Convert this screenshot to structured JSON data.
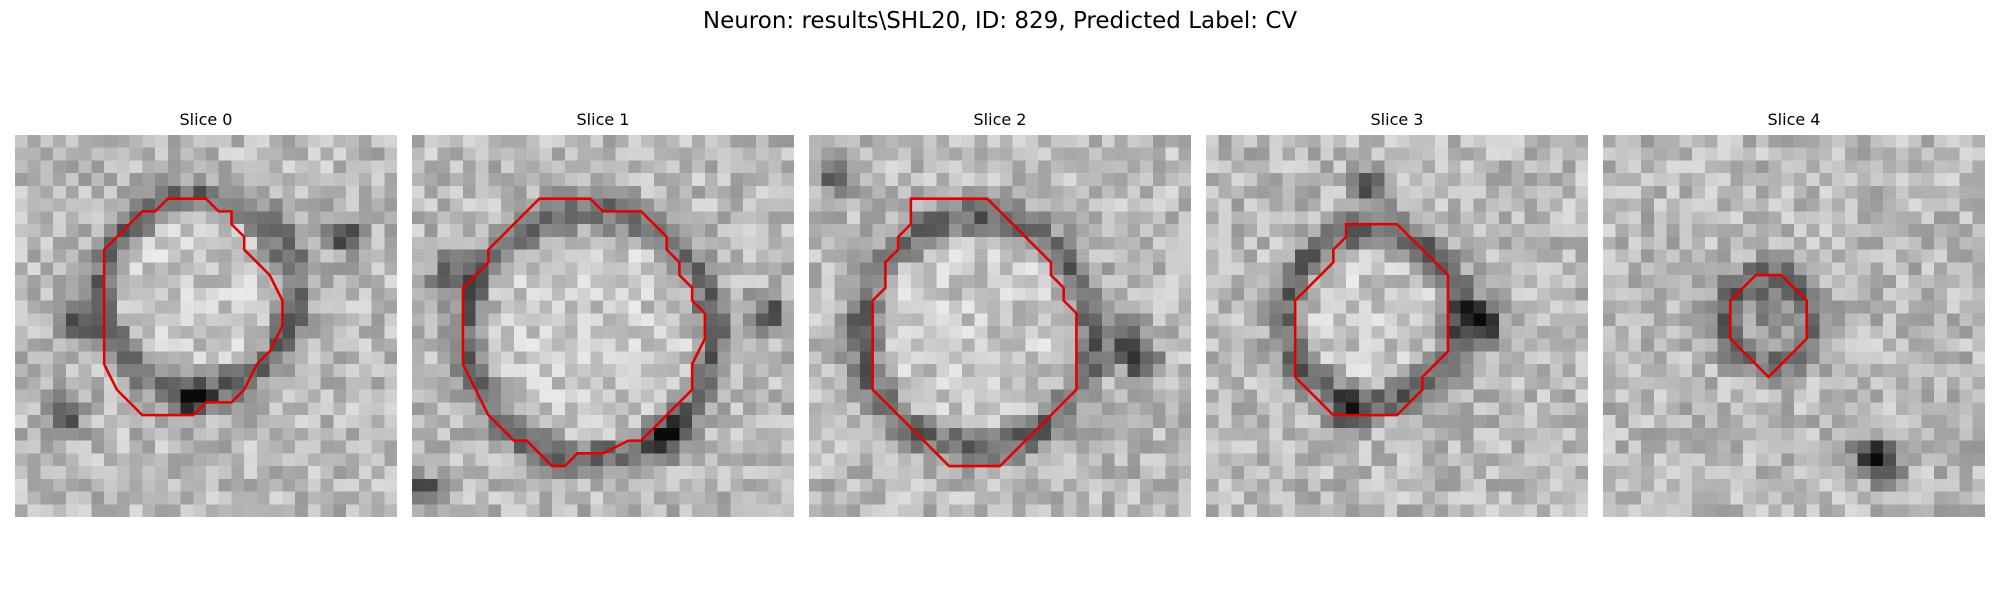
{
  "figure": {
    "title": "Neuron: results\\SHL20, ID: 829, Predicted Label: CV",
    "outline_color": "#e00000"
  },
  "panels": [
    {
      "title": "Slice 0",
      "outline": [
        [
          13,
          5
        ],
        [
          15,
          5
        ],
        [
          16,
          6
        ],
        [
          17,
          6
        ],
        [
          17,
          7
        ],
        [
          18,
          8
        ],
        [
          18,
          9
        ],
        [
          19,
          10
        ],
        [
          20,
          11
        ],
        [
          21,
          13
        ],
        [
          21,
          15
        ],
        [
          20,
          17
        ],
        [
          19,
          18
        ],
        [
          18,
          20
        ],
        [
          17,
          21
        ],
        [
          15,
          21
        ],
        [
          14,
          22
        ],
        [
          10,
          22
        ],
        [
          9,
          21
        ],
        [
          8,
          20
        ],
        [
          7,
          18
        ],
        [
          7,
          9
        ],
        [
          8,
          8
        ],
        [
          9,
          7
        ],
        [
          10,
          6
        ],
        [
          11,
          6
        ],
        [
          12,
          5
        ]
      ],
      "dark_spots": [
        [
          14,
          21
        ],
        [
          5,
          15
        ],
        [
          26,
          8
        ],
        [
          4,
          22
        ]
      ]
    },
    {
      "title": "Slice 1",
      "outline": [
        [
          10,
          5
        ],
        [
          14,
          5
        ],
        [
          15,
          6
        ],
        [
          18,
          6
        ],
        [
          19,
          7
        ],
        [
          20,
          8
        ],
        [
          20,
          9
        ],
        [
          21,
          10
        ],
        [
          21,
          11
        ],
        [
          22,
          12
        ],
        [
          22,
          13
        ],
        [
          23,
          14
        ],
        [
          23,
          16
        ],
        [
          22,
          18
        ],
        [
          22,
          20
        ],
        [
          21,
          21
        ],
        [
          20,
          22
        ],
        [
          19,
          23
        ],
        [
          18,
          24
        ],
        [
          17,
          24
        ],
        [
          15,
          25
        ],
        [
          13,
          25
        ],
        [
          12,
          26
        ],
        [
          11,
          26
        ],
        [
          10,
          25
        ],
        [
          9,
          24
        ],
        [
          8,
          24
        ],
        [
          7,
          23
        ],
        [
          6,
          22
        ],
        [
          5,
          20
        ],
        [
          4,
          18
        ],
        [
          4,
          12
        ],
        [
          5,
          11
        ],
        [
          6,
          10
        ],
        [
          6,
          9
        ],
        [
          7,
          8
        ],
        [
          8,
          7
        ],
        [
          9,
          6
        ]
      ],
      "dark_spots": [
        [
          1,
          28
        ],
        [
          28,
          14
        ],
        [
          20,
          24
        ],
        [
          3,
          11
        ]
      ]
    },
    {
      "title": "Slice 2",
      "outline": [
        [
          8,
          5
        ],
        [
          14,
          5
        ],
        [
          15,
          6
        ],
        [
          16,
          7
        ],
        [
          17,
          8
        ],
        [
          18,
          9
        ],
        [
          19,
          10
        ],
        [
          19,
          11
        ],
        [
          20,
          12
        ],
        [
          20,
          13
        ],
        [
          21,
          14
        ],
        [
          21,
          20
        ],
        [
          20,
          21
        ],
        [
          19,
          22
        ],
        [
          18,
          23
        ],
        [
          17,
          24
        ],
        [
          16,
          25
        ],
        [
          15,
          26
        ],
        [
          11,
          26
        ],
        [
          10,
          25
        ],
        [
          9,
          24
        ],
        [
          8,
          23
        ],
        [
          7,
          22
        ],
        [
          6,
          21
        ],
        [
          5,
          20
        ],
        [
          5,
          13
        ],
        [
          6,
          12
        ],
        [
          6,
          10
        ],
        [
          7,
          9
        ],
        [
          7,
          8
        ],
        [
          8,
          7
        ]
      ],
      "dark_spots": [
        [
          25,
          16
        ],
        [
          26,
          18
        ],
        [
          2,
          3
        ]
      ]
    },
    {
      "title": "Slice 3",
      "outline": [
        [
          11,
          7
        ],
        [
          15,
          7
        ],
        [
          16,
          8
        ],
        [
          17,
          9
        ],
        [
          18,
          10
        ],
        [
          19,
          11
        ],
        [
          19,
          17
        ],
        [
          18,
          18
        ],
        [
          17,
          19
        ],
        [
          17,
          20
        ],
        [
          16,
          21
        ],
        [
          15,
          22
        ],
        [
          10,
          22
        ],
        [
          9,
          21
        ],
        [
          8,
          20
        ],
        [
          7,
          19
        ],
        [
          7,
          13
        ],
        [
          8,
          12
        ],
        [
          9,
          11
        ],
        [
          10,
          10
        ],
        [
          10,
          9
        ],
        [
          11,
          8
        ]
      ],
      "dark_spots": [
        [
          21,
          14
        ],
        [
          22,
          15
        ],
        [
          11,
          22
        ],
        [
          13,
          4
        ]
      ]
    },
    {
      "title": "Slice 4",
      "outline": [
        [
          13,
          11
        ],
        [
          14,
          11
        ],
        [
          15,
          12
        ],
        [
          16,
          13
        ],
        [
          16,
          16
        ],
        [
          15,
          17
        ],
        [
          14,
          18
        ],
        [
          13,
          19
        ],
        [
          12,
          18
        ],
        [
          11,
          17
        ],
        [
          10,
          16
        ],
        [
          10,
          13
        ],
        [
          11,
          12
        ],
        [
          12,
          11
        ]
      ],
      "dark_spots": [
        [
          21,
          25
        ],
        [
          22,
          26
        ],
        [
          13,
          14
        ]
      ]
    }
  ]
}
